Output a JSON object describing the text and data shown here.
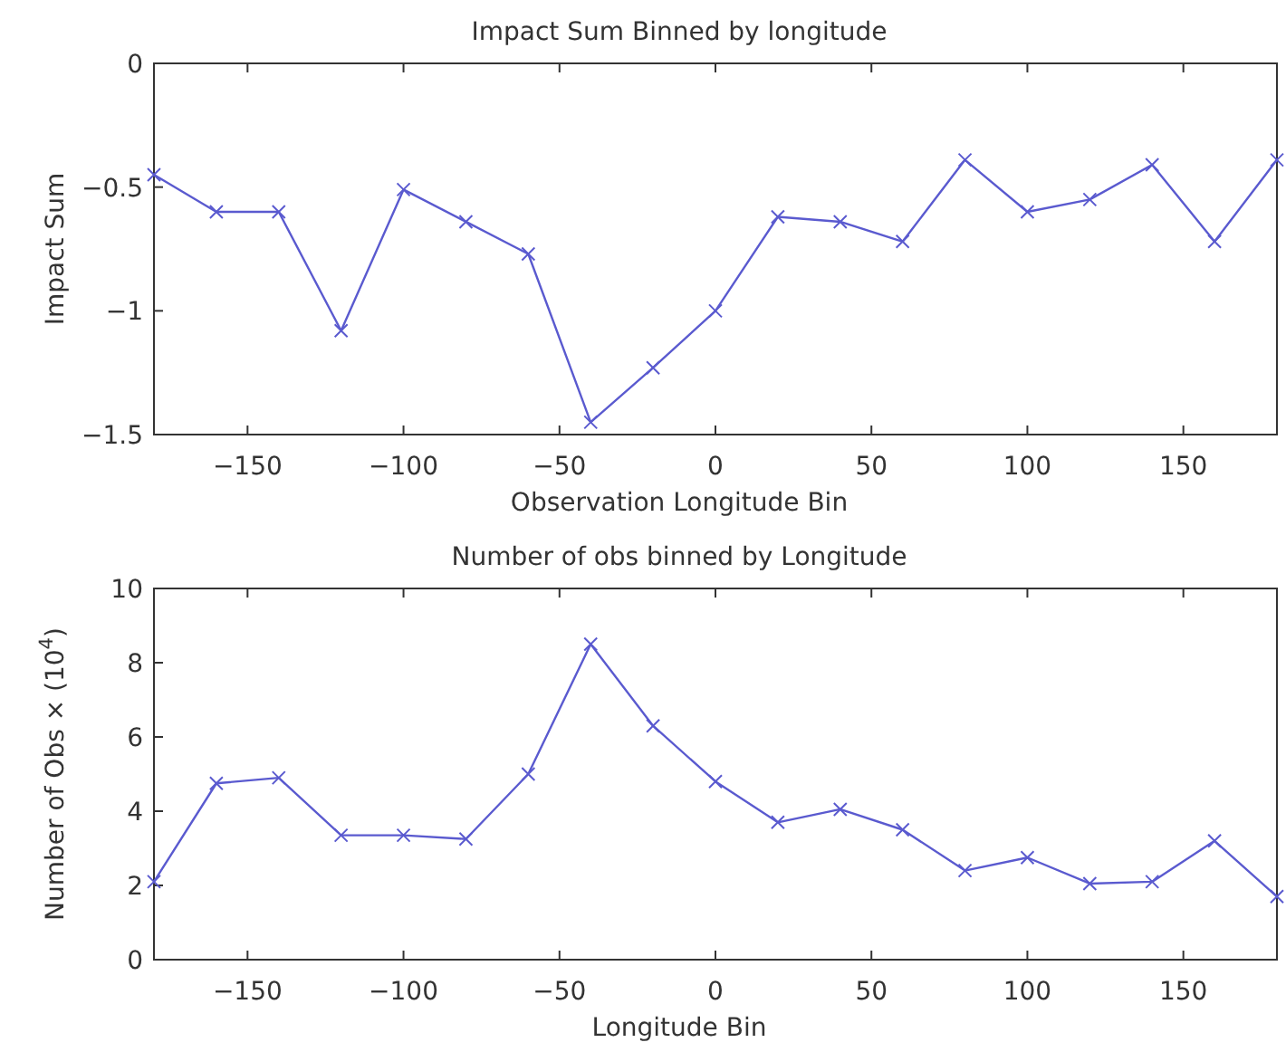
{
  "chart_data": [
    {
      "type": "line",
      "title": "Impact Sum Binned by longitude",
      "xlabel": "Observation Longitude Bin",
      "ylabel": "Impact Sum",
      "x": [
        -180,
        -160,
        -140,
        -120,
        -100,
        -80,
        -60,
        -40,
        -20,
        0,
        20,
        40,
        60,
        80,
        100,
        120,
        140,
        160,
        180
      ],
      "series": [
        {
          "color": "#5a5acf",
          "values": [
            -0.45,
            -0.6,
            -0.6,
            -1.08,
            -0.51,
            -0.64,
            -0.77,
            -1.45,
            -1.23,
            -1.0,
            -0.62,
            -0.64,
            -0.72,
            -0.39,
            -0.6,
            -0.55,
            -0.41,
            -0.72,
            -0.39
          ]
        }
      ],
      "xlim": [
        -180,
        180
      ],
      "xticks": [
        -150,
        -100,
        -50,
        0,
        50,
        100,
        150
      ],
      "ylim": [
        -1.5,
        0
      ],
      "yticks": [
        -1.5,
        -1,
        -0.5,
        0
      ],
      "marker": "cross",
      "line_style": "solid",
      "grid": false
    },
    {
      "type": "line",
      "title": "Number of obs binned by Longitude",
      "xlabel": "Longitude Bin",
      "ylabel": "Number of Obs × (10$^{4}$)",
      "x": [
        -180,
        -160,
        -140,
        -120,
        -100,
        -80,
        -60,
        -40,
        -20,
        0,
        20,
        40,
        60,
        80,
        100,
        120,
        140,
        160,
        180
      ],
      "series": [
        {
          "color": "#5a5acf",
          "values": [
            2.1,
            4.75,
            4.9,
            3.35,
            3.35,
            3.25,
            5.0,
            8.5,
            6.3,
            4.8,
            3.7,
            4.05,
            3.5,
            2.4,
            2.75,
            2.05,
            2.1,
            3.2,
            1.7
          ]
        }
      ],
      "xlim": [
        -180,
        180
      ],
      "xticks": [
        -150,
        -100,
        -50,
        0,
        50,
        100,
        150
      ],
      "ylim": [
        0,
        10
      ],
      "yticks": [
        0,
        2,
        4,
        6,
        8,
        10
      ],
      "marker": "cross",
      "line_style": "solid",
      "grid": false
    }
  ]
}
